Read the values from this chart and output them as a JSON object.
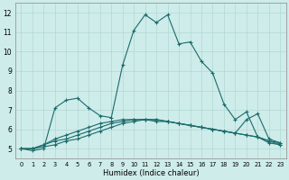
{
  "xlabel": "Humidex (Indice chaleur)",
  "xlim": [
    -0.5,
    23.5
  ],
  "ylim": [
    4.5,
    12.5
  ],
  "xticks": [
    0,
    1,
    2,
    3,
    4,
    5,
    6,
    7,
    8,
    9,
    10,
    11,
    12,
    13,
    14,
    15,
    16,
    17,
    18,
    19,
    20,
    21,
    22,
    23
  ],
  "yticks": [
    5,
    6,
    7,
    8,
    9,
    10,
    11,
    12
  ],
  "bg_color": "#ceecea",
  "grid_color": "#b2d8d4",
  "line_color": "#1a6b6b",
  "x_vals": [
    0,
    1,
    2,
    3,
    4,
    5,
    6,
    7,
    8,
    9,
    10,
    11,
    12,
    13,
    14,
    15,
    16,
    17,
    18,
    19,
    20,
    21,
    22,
    23
  ],
  "series": [
    [
      5.0,
      4.9,
      5.0,
      7.1,
      7.5,
      7.6,
      7.1,
      6.7,
      6.6,
      9.3,
      11.1,
      11.9,
      11.5,
      11.9,
      10.4,
      10.5,
      9.5,
      8.9,
      7.3,
      6.5,
      6.9,
      5.6,
      5.3,
      5.2
    ],
    [
      5.0,
      5.0,
      5.1,
      5.2,
      5.4,
      5.5,
      5.7,
      5.9,
      6.1,
      6.3,
      6.4,
      6.5,
      6.5,
      6.4,
      6.3,
      6.2,
      6.1,
      6.0,
      5.9,
      5.8,
      5.7,
      5.6,
      5.4,
      5.2
    ],
    [
      5.0,
      5.0,
      5.2,
      5.4,
      5.5,
      5.7,
      5.9,
      6.1,
      6.3,
      6.4,
      6.5,
      6.5,
      6.5,
      6.4,
      6.3,
      6.2,
      6.1,
      6.0,
      5.9,
      5.8,
      5.7,
      5.6,
      5.4,
      5.3
    ],
    [
      5.0,
      5.0,
      5.2,
      5.5,
      5.7,
      5.9,
      6.1,
      6.3,
      6.4,
      6.5,
      6.5,
      6.5,
      6.4,
      6.4,
      6.3,
      6.2,
      6.1,
      6.0,
      5.9,
      5.8,
      6.5,
      6.8,
      5.5,
      5.3
    ]
  ]
}
